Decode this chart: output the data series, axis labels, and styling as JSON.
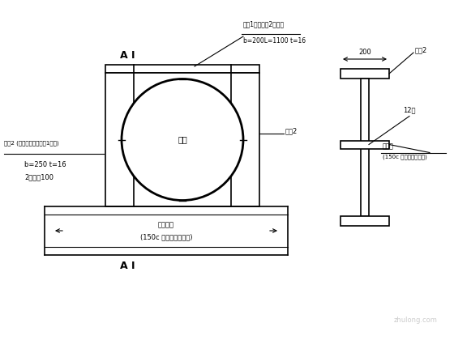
{
  "bg_color": "#ffffff",
  "line_color": "#000000",
  "annotations": {
    "top_label": "輔杈1（与輔杈2拼接）",
    "top_dim": "b=200L=1100 t=16",
    "left_label": "輔杈2 (与面板型转角輔杈1拼接)",
    "left_dim1": "b=250 t=16",
    "left_dim2": "2块拼接100",
    "right_label": "輔杈2",
    "center_label": "键算",
    "bottom_label1": "模板型钉",
    "bottom_label2": "(150c 工字形钉子制作)",
    "right_section_label1": "钉楷板",
    "right_section_label2": "(150c 工字形钉子制作)",
    "right_label2": "輔杈2",
    "dim_200": "200",
    "dim_12": "12度"
  }
}
